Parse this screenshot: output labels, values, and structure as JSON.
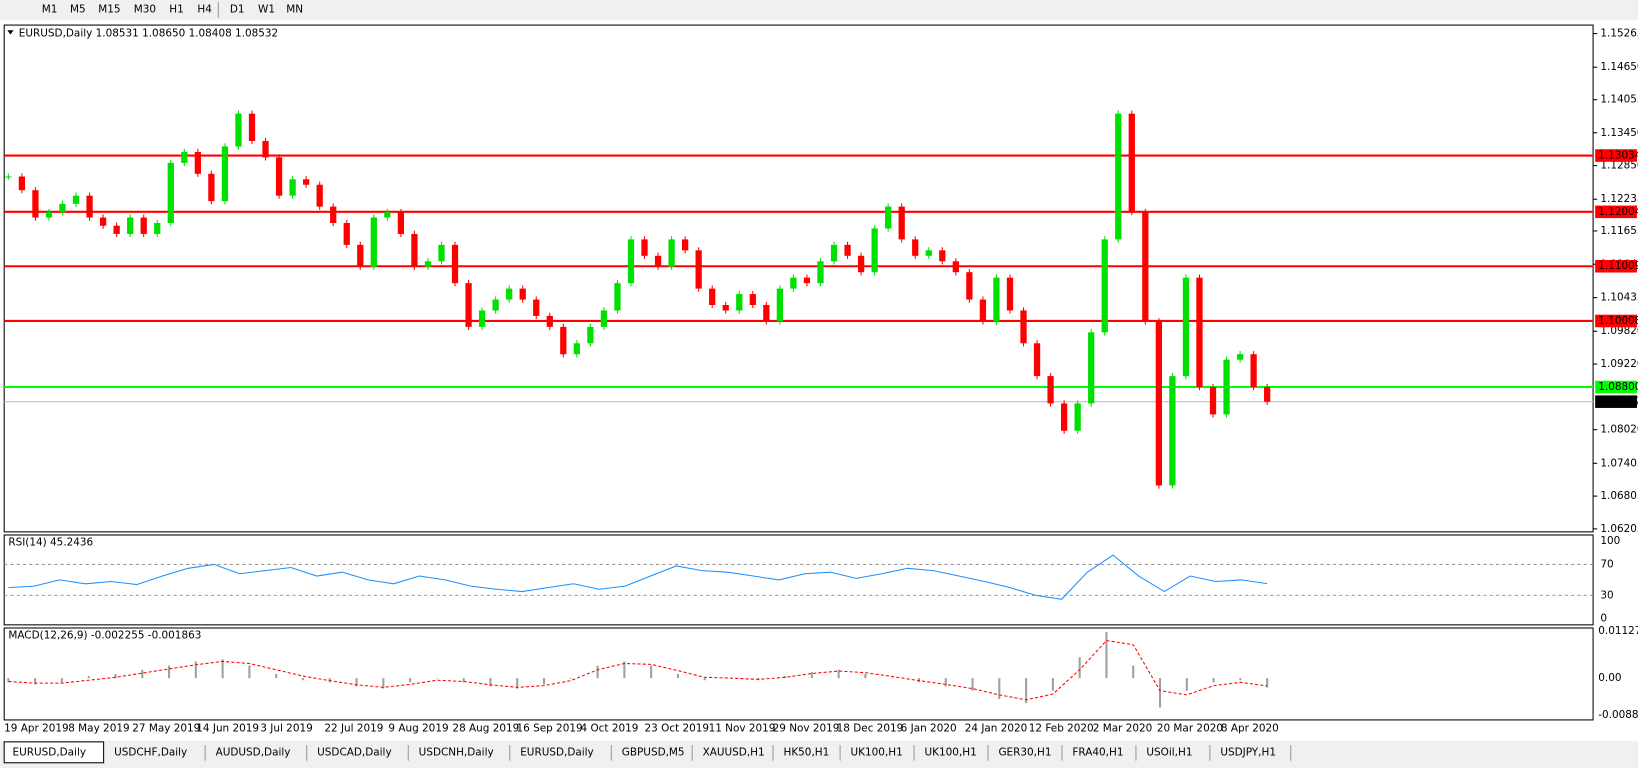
{
  "toolbar": {
    "timeframes": [
      "M1",
      "M5",
      "M15",
      "M30",
      "H1",
      "H4",
      "D1",
      "W1",
      "MN"
    ]
  },
  "chart": {
    "header": "EURUSD,Daily  1.08531 1.08650 1.08408 1.08532",
    "ylim": [
      1.0617,
      1.1542
    ],
    "yticks": [
      1.15265,
      {
        "value": 1.1465,
        "label": "1.14650"
      },
      1.14055,
      {
        "value": 1.1345,
        "label": "1.13450"
      },
      {
        "value": 1.1285,
        "label": "1.12850"
      },
      1.12235,
      1.11655,
      1.11045,
      1.10435,
      {
        "value": 1.0982,
        "label": "1.09820"
      },
      {
        "value": 1.0922,
        "label": "1.09220"
      },
      {
        "value": 1.0802,
        "label": "1.08020"
      },
      1.07405,
      1.06805,
      1.06205
    ],
    "levels": [
      {
        "price": 1.13034,
        "color": "#ff0000"
      },
      {
        "price": 1.12004,
        "color": "#ff0000"
      },
      {
        "price": 1.11009,
        "color": "#ff0000"
      },
      {
        "price": 1.10008,
        "color": "#ff0000"
      },
      {
        "price": {
          "value": 1.088,
          "label": "1.08800"
        },
        "color": "#00ff00"
      }
    ],
    "current": 1.08532,
    "up_color": "#00e000",
    "down_color": "#ff0000",
    "closes": [
      1.1265,
      1.124,
      1.119,
      1.12,
      1.1215,
      1.123,
      1.119,
      1.1175,
      1.116,
      1.119,
      1.116,
      1.118,
      1.129,
      1.131,
      1.127,
      1.122,
      1.132,
      1.138,
      1.133,
      1.13,
      1.123,
      1.126,
      1.125,
      1.121,
      1.118,
      1.114,
      1.11,
      1.119,
      1.12,
      1.116,
      1.11,
      1.111,
      1.114,
      1.107,
      1.099,
      1.102,
      1.104,
      1.106,
      1.104,
      1.101,
      1.099,
      1.094,
      1.096,
      1.099,
      1.102,
      1.107,
      1.115,
      1.112,
      1.11,
      1.115,
      1.113,
      1.106,
      1.103,
      1.102,
      1.105,
      1.103,
      1.1,
      1.106,
      1.108,
      1.107,
      1.111,
      1.114,
      1.112,
      1.109,
      1.117,
      1.121,
      1.115,
      1.112,
      1.113,
      1.111,
      1.109,
      1.104,
      1.1,
      1.108,
      1.102,
      1.096,
      1.09,
      1.085,
      1.08,
      1.085,
      1.098,
      1.115,
      1.138,
      1.12,
      1.1,
      1.07,
      1.09,
      1.108,
      1.088,
      1.083,
      1.093,
      1.094,
      1.088,
      1.0853
    ],
    "dates": [
      "19 Apr 2019",
      "8 May 2019",
      "27 May 2019",
      "14 Jun 2019",
      "3 Jul 2019",
      "22 Jul 2019",
      "9 Aug 2019",
      "28 Aug 2019",
      "16 Sep 2019",
      "4 Oct 2019",
      "23 Oct 2019",
      "11 Nov 2019",
      "29 Nov 2019",
      "18 Dec 2019",
      "6 Jan 2020",
      "24 Jan 2020",
      "12 Feb 2020",
      "2 Mar 2020",
      "20 Mar 2020",
      "8 Apr 2020"
    ]
  },
  "rsi": {
    "label": "RSI(14) 45.2436",
    "ylim": [
      -8,
      108
    ],
    "yticks": [
      100,
      70,
      30,
      0
    ],
    "levels": [
      70,
      30
    ],
    "color": "#1e90ff",
    "values": [
      40,
      42,
      50,
      45,
      48,
      44,
      55,
      65,
      70,
      58,
      62,
      66,
      55,
      60,
      50,
      45,
      55,
      50,
      42,
      38,
      35,
      40,
      45,
      38,
      42,
      55,
      68,
      62,
      60,
      55,
      50,
      58,
      60,
      52,
      58,
      65,
      62,
      55,
      48,
      40,
      30,
      25,
      60,
      82,
      55,
      35,
      55,
      48,
      50,
      45.24
    ]
  },
  "macd": {
    "label": "MACD(12,26,9) -0.002255 -0.001863",
    "ylim": [
      -0.01,
      0.012
    ],
    "yticks": [
      {
        "value": 0.011277,
        "label": "0.011277"
      },
      {
        "value": 0,
        "label": "0.00"
      },
      {
        "value": -0.008845,
        "label": "-0.00884"
      }
    ],
    "hist_color": "#a0a0a0",
    "signal_color": "#ff0000",
    "histogram": [
      -0.001,
      -0.0015,
      -0.001,
      0.0005,
      0.001,
      0.002,
      0.003,
      0.004,
      0.0045,
      0.003,
      0.001,
      -0.0005,
      -0.001,
      -0.002,
      -0.0025,
      -0.001,
      0,
      -0.001,
      -0.002,
      -0.0025,
      -0.0015,
      0,
      0.003,
      0.004,
      0.003,
      0.001,
      -0.0005,
      0,
      -0.0005,
      0.0005,
      0.0015,
      0.002,
      0.001,
      0,
      -0.001,
      -0.002,
      -0.003,
      -0.005,
      -0.006,
      -0.003,
      0.005,
      0.011,
      0.003,
      -0.007,
      -0.003,
      -0.001,
      -0.0005,
      -0.002255
    ],
    "signal": [
      -0.0008,
      -0.0012,
      -0.0012,
      -0.0005,
      0.0002,
      0.0012,
      0.0022,
      0.0032,
      0.004,
      0.0035,
      0.002,
      0.0005,
      -0.0006,
      -0.0016,
      -0.0022,
      -0.0015,
      -0.0005,
      -0.0008,
      -0.0016,
      -0.0022,
      -0.0018,
      -0.0006,
      0.002,
      0.0035,
      0.0033,
      0.0018,
      0.0002,
      0,
      -0.0003,
      0.0002,
      0.0011,
      0.0017,
      0.0013,
      0.0004,
      -0.0006,
      -0.0015,
      -0.0025,
      -0.004,
      -0.0052,
      -0.0038,
      0.002,
      0.009,
      0.008,
      -0.003,
      -0.004,
      -0.0018,
      -0.001,
      -0.001863
    ]
  },
  "tabs": [
    "EURUSD,Daily",
    "USDCHF,Daily",
    "AUDUSD,Daily",
    "USDCAD,Daily",
    "USDCNH,Daily",
    "EURUSD,Daily",
    "GBPUSD,M5",
    "XAUUSD,H1",
    "HK50,H1",
    "UK100,H1",
    "UK100,H1",
    "GER30,H1",
    "FRA40,H1",
    "USOil,H1",
    "USDJPY,H1"
  ],
  "active_tab": 0
}
